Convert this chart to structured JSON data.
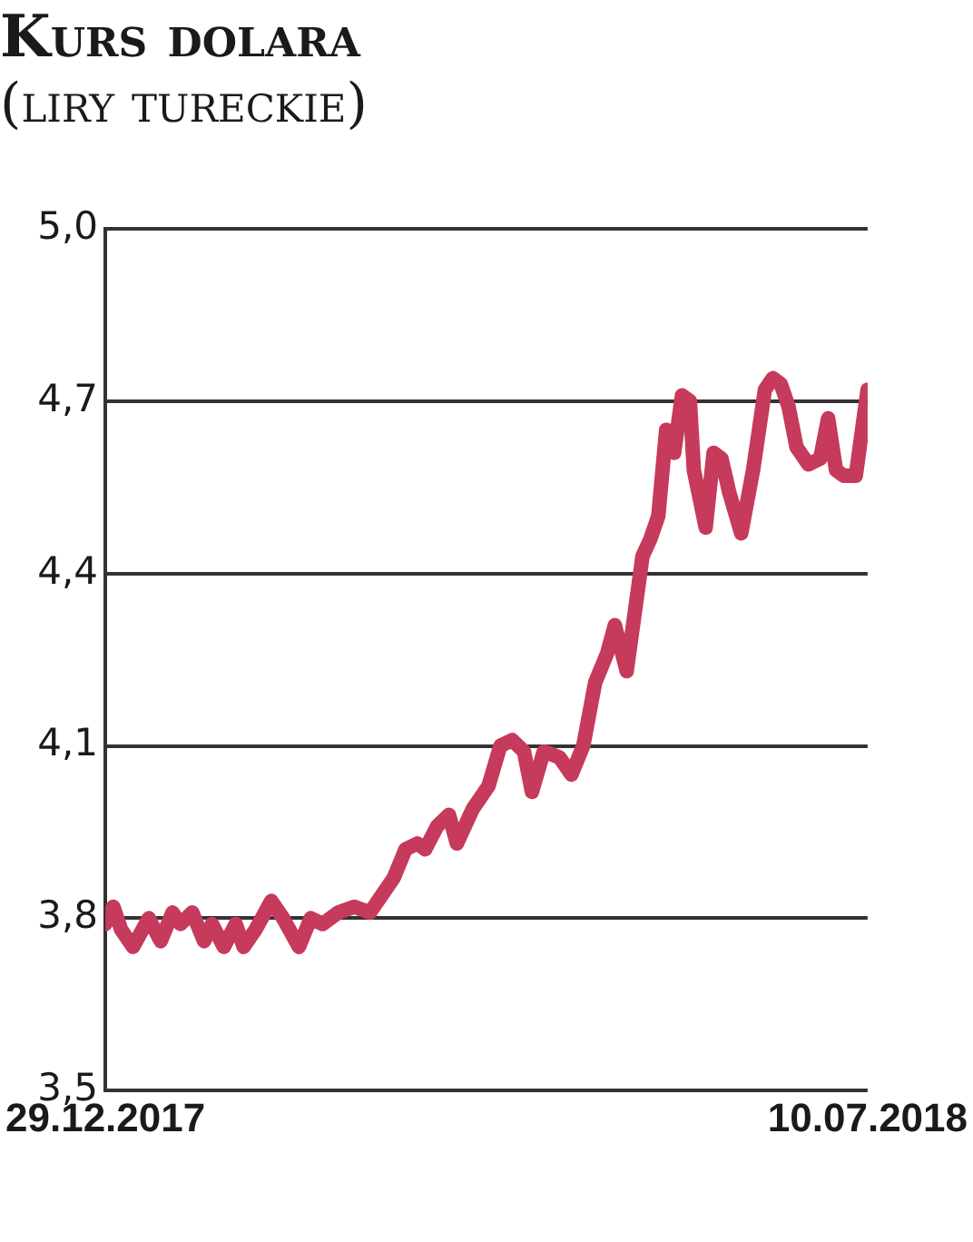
{
  "chart_data": {
    "type": "line",
    "title": "Kurs dolara",
    "subtitle": "(liry tureckie)",
    "x": [
      "2017-12-29",
      "2017-12-31",
      "2018-01-02",
      "2018-01-05",
      "2018-01-09",
      "2018-01-12",
      "2018-01-15",
      "2018-01-17",
      "2018-01-20",
      "2018-01-23",
      "2018-01-25",
      "2018-01-28",
      "2018-01-31",
      "2018-02-02",
      "2018-02-05",
      "2018-02-09",
      "2018-02-12",
      "2018-02-16",
      "2018-02-19",
      "2018-02-22",
      "2018-02-26",
      "2018-03-02",
      "2018-03-06",
      "2018-03-09",
      "2018-03-12",
      "2018-03-15",
      "2018-03-18",
      "2018-03-20",
      "2018-03-23",
      "2018-03-26",
      "2018-03-28",
      "2018-04-01",
      "2018-04-05",
      "2018-04-08",
      "2018-04-11",
      "2018-04-14",
      "2018-04-16",
      "2018-04-19",
      "2018-04-23",
      "2018-04-26",
      "2018-04-29",
      "2018-05-02",
      "2018-05-05",
      "2018-05-07",
      "2018-05-10",
      "2018-05-12",
      "2018-05-14",
      "2018-05-16",
      "2018-05-18",
      "2018-05-20",
      "2018-05-22",
      "2018-05-24",
      "2018-05-26",
      "2018-05-27",
      "2018-05-30",
      "2018-06-01",
      "2018-06-03",
      "2018-06-05",
      "2018-06-08",
      "2018-06-11",
      "2018-06-14",
      "2018-06-16",
      "2018-06-18",
      "2018-06-20",
      "2018-06-22",
      "2018-06-25",
      "2018-06-28",
      "2018-06-30",
      "2018-07-02",
      "2018-07-04",
      "2018-07-07",
      "2018-07-10"
    ],
    "values": [
      3.79,
      3.82,
      3.78,
      3.75,
      3.8,
      3.76,
      3.81,
      3.79,
      3.81,
      3.76,
      3.79,
      3.75,
      3.79,
      3.75,
      3.78,
      3.83,
      3.8,
      3.75,
      3.8,
      3.79,
      3.81,
      3.82,
      3.81,
      3.84,
      3.87,
      3.92,
      3.93,
      3.92,
      3.96,
      3.98,
      3.93,
      3.99,
      4.03,
      4.1,
      4.11,
      4.09,
      4.02,
      4.09,
      4.08,
      4.05,
      4.1,
      4.21,
      4.26,
      4.31,
      4.23,
      4.33,
      4.43,
      4.46,
      4.5,
      4.65,
      4.61,
      4.71,
      4.7,
      4.58,
      4.48,
      4.61,
      4.6,
      4.54,
      4.47,
      4.58,
      4.72,
      4.74,
      4.73,
      4.69,
      4.62,
      4.59,
      4.6,
      4.67,
      4.58,
      4.57,
      4.57,
      4.72
    ],
    "color": "#c63a5c",
    "xlim": [
      "2017-12-29",
      "2018-07-10"
    ],
    "xticks": [
      {
        "value": "2017-12-29",
        "label": "29.12.2017"
      },
      {
        "value": "2018-07-10",
        "label": "10.07.2018"
      }
    ],
    "ylim": [
      3.5,
      5.0
    ],
    "yticks": [
      {
        "value": 3.5,
        "label": "3,5"
      },
      {
        "value": 3.8,
        "label": "3,8"
      },
      {
        "value": 4.1,
        "label": "4,1"
      },
      {
        "value": 4.4,
        "label": "4,4"
      },
      {
        "value": 4.7,
        "label": "4,7"
      },
      {
        "value": 5.0,
        "label": "5,0"
      }
    ],
    "grid": "y"
  }
}
